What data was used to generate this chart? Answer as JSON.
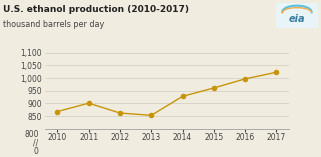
{
  "title": "U.S. ethanol production (2010-2017)",
  "subtitle": "thousand barrels per day",
  "years": [
    2010,
    2011,
    2012,
    2013,
    2014,
    2015,
    2016,
    2017
  ],
  "values": [
    868,
    901,
    862,
    853,
    928,
    961,
    997,
    1023
  ],
  "line_color": "#c8940a",
  "marker_color": "#c8940a",
  "bg_color": "#f0ece0",
  "grid_color": "#d0ccc0",
  "title_fontsize": 6.5,
  "subtitle_fontsize": 5.8,
  "tick_fontsize": 5.5,
  "yticks": [
    850,
    900,
    950,
    1000,
    1050,
    1100
  ],
  "ylim": [
    800,
    1110
  ],
  "xlim": [
    2009.6,
    2017.4
  ]
}
